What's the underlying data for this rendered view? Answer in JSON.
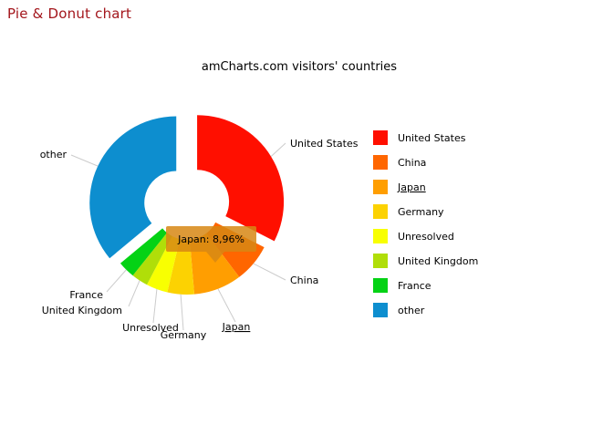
{
  "page": {
    "heading": "Pie & Donut chart"
  },
  "chart_data": {
    "type": "pie",
    "variant": "donut",
    "title": "amCharts.com visitors' countries",
    "series": [
      {
        "name": "United States",
        "value": 32.5,
        "color": "#ff0f00"
      },
      {
        "name": "China",
        "value": 7.2,
        "color": "#ff6600"
      },
      {
        "name": "Japan",
        "value": 8.96,
        "color": "#ff9e01"
      },
      {
        "name": "Germany",
        "value": 5.0,
        "color": "#fcd202"
      },
      {
        "name": "Unresolved",
        "value": 4.0,
        "color": "#f8ff01"
      },
      {
        "name": "United Kingdom",
        "value": 3.1,
        "color": "#b0de09"
      },
      {
        "name": "France",
        "value": 3.2,
        "color": "#04d215"
      },
      {
        "name": "other",
        "value": 36.04,
        "color": "#0d8ecf"
      }
    ],
    "pulled_out": [
      "United States",
      "other"
    ],
    "hovered": "Japan",
    "legend_position": "right"
  },
  "tooltip": {
    "text": "Japan: 8,96%"
  }
}
